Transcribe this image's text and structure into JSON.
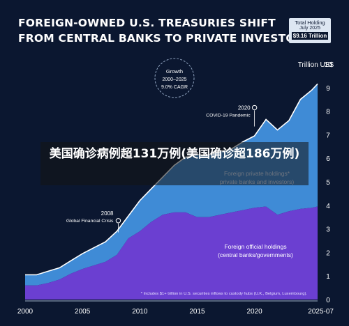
{
  "title": {
    "line1": "FOREIGN-OWNED U.S. TREASURIES SHIFT",
    "line2": "FROM CENTRAL BANKS TO PRIVATE INVESTORS"
  },
  "badge": {
    "label": "Total Holding",
    "date": "July 2025",
    "value": "$9.16 Trillion"
  },
  "overlay_text": "美国确诊病例超131万例(美国确诊超186万例)",
  "colors": {
    "background": "#0b1730",
    "private": "#3f8bd6",
    "official": "#6b3fd1"
  },
  "chart_data": {
    "type": "area",
    "ylabel": "Trillion US$",
    "ylim": [
      0,
      10
    ],
    "y_ticks": [
      0,
      1,
      2,
      3,
      4,
      5,
      6,
      7,
      8,
      9,
      10
    ],
    "x_tick_labels": [
      "2000",
      "2005",
      "2010",
      "2015",
      "2020",
      "2025-07"
    ],
    "x_tick_years": [
      2000,
      2005,
      2010,
      2015,
      2020,
      2025.5
    ],
    "xlim": [
      2000,
      2025.5
    ],
    "x": [
      2000,
      2001,
      2002,
      2003,
      2004,
      2005,
      2006,
      2007,
      2008,
      2009,
      2010,
      2011,
      2012,
      2013,
      2014,
      2015,
      2016,
      2017,
      2018,
      2019,
      2020,
      2021,
      2022,
      2023,
      2024,
      2025,
      2025.5
    ],
    "series": [
      {
        "name": "Foreign official holdings (central banks/governments)",
        "values": [
          0.6,
          0.6,
          0.7,
          0.85,
          1.1,
          1.3,
          1.45,
          1.6,
          1.9,
          2.6,
          2.9,
          3.3,
          3.6,
          3.7,
          3.7,
          3.5,
          3.5,
          3.6,
          3.7,
          3.8,
          3.9,
          3.95,
          3.6,
          3.75,
          3.85,
          3.9,
          3.95
        ]
      },
      {
        "name": "Foreign private holdings* (private banks and investors)",
        "values": [
          0.45,
          0.45,
          0.5,
          0.5,
          0.55,
          0.65,
          0.75,
          0.85,
          1.0,
          0.95,
          1.3,
          1.4,
          1.6,
          2.0,
          2.35,
          2.65,
          2.65,
          2.7,
          2.7,
          2.9,
          3.05,
          3.7,
          3.6,
          3.85,
          4.65,
          5.0,
          5.21
        ]
      }
    ],
    "labels": {
      "private_1": "Foreign private holdings*",
      "private_2": "private banks and investors)",
      "official_1": "Foreign official holdings",
      "official_2": "(central banks/governments)",
      "footnote": "* Includes $1+ trillion in U.S. securities inflows to custody hubs (U.K., Belgium, Luxembourg)."
    },
    "annotations": [
      {
        "year": 2008,
        "value": 3.35,
        "label": "2008",
        "sublabel": "Global Financial Crisis"
      },
      {
        "year": 2020,
        "value": 8.15,
        "label": "2020",
        "sublabel": "COVID-19 Pandemic"
      }
    ],
    "growth": {
      "line1": "Growth",
      "line2": "2000–2025",
      "line3": "9.0% CAGR"
    },
    "legend": "none",
    "grid": false
  }
}
